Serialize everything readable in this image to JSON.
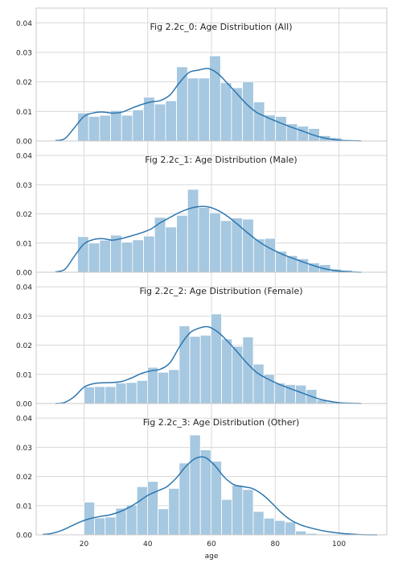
{
  "chart_data": [
    {
      "type": "bar",
      "title": "Fig 2.2c_0: Age Distribution (All)",
      "xlabel": "",
      "ylabel": "",
      "xlim": [
        5,
        115
      ],
      "ylim": [
        0,
        0.045
      ],
      "yticks": [
        "0.00",
        "0.01",
        "0.02",
        "0.03",
        "0.04"
      ],
      "grid": true,
      "bins": {
        "start": 18,
        "width": 3.45,
        "values": [
          0.0095,
          0.0083,
          0.0087,
          0.0103,
          0.0087,
          0.0105,
          0.0148,
          0.0125,
          0.0136,
          0.0251,
          0.0213,
          0.0213,
          0.0288,
          0.0197,
          0.018,
          0.0201,
          0.0132,
          0.0088,
          0.0083,
          0.0058,
          0.005,
          0.0042,
          0.0018,
          0.0011
        ]
      },
      "kde": {
        "x": [
          11,
          14,
          17,
          20,
          23,
          26,
          29,
          32,
          35,
          38,
          41,
          44,
          47,
          50,
          53,
          56,
          59,
          62,
          65,
          68,
          71,
          74,
          77,
          80,
          83,
          86,
          89,
          92,
          95,
          98,
          101,
          104,
          107
        ],
        "y": [
          0.0001,
          0.0008,
          0.0045,
          0.0083,
          0.0095,
          0.0098,
          0.0094,
          0.0098,
          0.0111,
          0.0123,
          0.0132,
          0.0137,
          0.0156,
          0.0198,
          0.0232,
          0.024,
          0.0245,
          0.0228,
          0.0195,
          0.016,
          0.0125,
          0.0098,
          0.0082,
          0.0068,
          0.0055,
          0.0043,
          0.0032,
          0.002,
          0.0011,
          0.0005,
          0.0002,
          0.0001,
          0.0
        ]
      }
    },
    {
      "type": "bar",
      "title": "Fig 2.2c_1: Age Distribution (Male)",
      "xlabel": "",
      "ylabel": "",
      "xlim": [
        5,
        115
      ],
      "ylim": [
        0,
        0.045
      ],
      "yticks": [
        "0.00",
        "0.01",
        "0.02",
        "0.03",
        "0.04"
      ],
      "grid": true,
      "bins": {
        "start": 18,
        "width": 3.45,
        "values": [
          0.0122,
          0.01,
          0.011,
          0.0127,
          0.0103,
          0.0111,
          0.0124,
          0.0188,
          0.0155,
          0.0195,
          0.0284,
          0.0222,
          0.0204,
          0.0177,
          0.0186,
          0.0182,
          0.0114,
          0.0116,
          0.0072,
          0.0057,
          0.0046,
          0.0032,
          0.0026,
          0.0011,
          0.0007
        ]
      },
      "kde": {
        "x": [
          11,
          14,
          17,
          20,
          23,
          26,
          29,
          32,
          35,
          38,
          41,
          44,
          47,
          50,
          53,
          56,
          59,
          62,
          65,
          68,
          71,
          74,
          77,
          80,
          83,
          86,
          89,
          92,
          95,
          98,
          101,
          104,
          107
        ],
        "y": [
          0.0001,
          0.001,
          0.0055,
          0.0097,
          0.0112,
          0.0115,
          0.011,
          0.0116,
          0.0125,
          0.0135,
          0.0148,
          0.017,
          0.0188,
          0.0205,
          0.0218,
          0.0225,
          0.0224,
          0.0212,
          0.0192,
          0.0166,
          0.0138,
          0.0112,
          0.009,
          0.0073,
          0.0058,
          0.0046,
          0.0034,
          0.0023,
          0.0013,
          0.0007,
          0.0003,
          0.0001,
          0.0
        ]
      }
    },
    {
      "type": "bar",
      "title": "Fig 2.2c_2: Age Distribution (Female)",
      "xlabel": "",
      "ylabel": "",
      "xlim": [
        5,
        115
      ],
      "ylim": [
        0,
        0.045
      ],
      "yticks": [
        "0.00",
        "0.01",
        "0.02",
        "0.03",
        "0.04"
      ],
      "grid": true,
      "bins": {
        "start": 20,
        "width": 3.32,
        "values": [
          0.0057,
          0.0058,
          0.0058,
          0.007,
          0.0072,
          0.0079,
          0.0124,
          0.0107,
          0.0116,
          0.0266,
          0.023,
          0.0234,
          0.0307,
          0.0221,
          0.0196,
          0.0228,
          0.0135,
          0.01,
          0.007,
          0.0065,
          0.0063,
          0.0048,
          0.0013,
          0.0005
        ]
      },
      "kde": {
        "x": [
          11,
          14,
          17,
          20,
          23,
          26,
          29,
          32,
          35,
          38,
          41,
          44,
          47,
          50,
          53,
          56,
          59,
          62,
          65,
          68,
          71,
          74,
          77,
          80,
          83,
          86,
          89,
          92,
          95,
          98,
          101,
          104,
          107
        ],
        "y": [
          0.0,
          0.0004,
          0.0024,
          0.0056,
          0.0068,
          0.0071,
          0.0072,
          0.0076,
          0.0088,
          0.0103,
          0.0112,
          0.0118,
          0.014,
          0.0195,
          0.024,
          0.0258,
          0.0263,
          0.0245,
          0.0214,
          0.0178,
          0.014,
          0.0108,
          0.0088,
          0.0072,
          0.0058,
          0.0046,
          0.0034,
          0.0022,
          0.0012,
          0.0006,
          0.0002,
          0.0001,
          0.0
        ]
      }
    },
    {
      "type": "bar",
      "title": "Fig 2.2c_3: Age Distribution (Other)",
      "xlabel": "age",
      "ylabel": "",
      "xlim": [
        5,
        115
      ],
      "ylim": [
        0,
        0.045
      ],
      "yticks": [
        "0.00",
        "0.01",
        "0.02",
        "0.03",
        "0.04"
      ],
      "xticks": [
        "20",
        "40",
        "60",
        "80",
        "100"
      ],
      "grid": true,
      "bins": {
        "start": 20,
        "width": 3.32,
        "values": [
          0.0112,
          0.0058,
          0.0061,
          0.0091,
          0.0102,
          0.0165,
          0.0183,
          0.0089,
          0.0159,
          0.0246,
          0.0342,
          0.0291,
          0.0252,
          0.0121,
          0.017,
          0.0155,
          0.008,
          0.0057,
          0.0049,
          0.0044,
          0.0013,
          0.0005
        ]
      },
      "kde": {
        "x": [
          7,
          10,
          13,
          16,
          19,
          22,
          25,
          28,
          31,
          34,
          37,
          40,
          43,
          46,
          49,
          52,
          55,
          58,
          61,
          64,
          67,
          70,
          73,
          76,
          79,
          82,
          85,
          88,
          91,
          94,
          97,
          100,
          103,
          106,
          109,
          112
        ],
        "y": [
          0.0001,
          0.0005,
          0.0015,
          0.003,
          0.0045,
          0.0056,
          0.0063,
          0.0068,
          0.0078,
          0.0093,
          0.0113,
          0.0135,
          0.015,
          0.0165,
          0.0195,
          0.0235,
          0.0262,
          0.0265,
          0.0238,
          0.0198,
          0.0172,
          0.0165,
          0.0158,
          0.0138,
          0.0108,
          0.0075,
          0.005,
          0.0034,
          0.0024,
          0.0016,
          0.001,
          0.0006,
          0.0003,
          0.0001,
          0.0,
          0.0
        ]
      }
    }
  ],
  "colors": {
    "bar_fill": "#a6c8e0",
    "kde_line": "#2d77b0",
    "grid": "#d8d8d8",
    "frame": "#c9c9c9",
    "text": "#262626"
  }
}
